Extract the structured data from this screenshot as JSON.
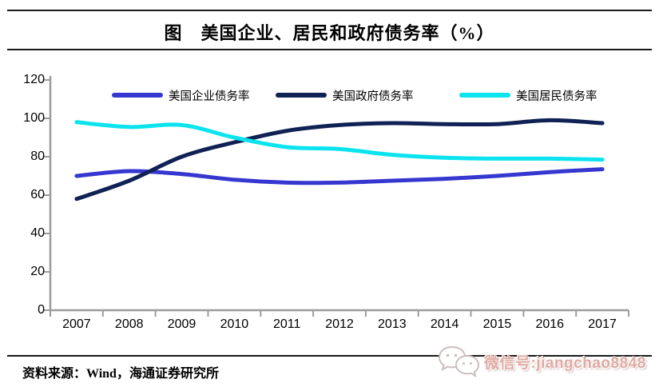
{
  "page": {
    "title": "图　美国企业、居民和政府债务率（%）",
    "source_label": "资料来源：Wind，海通证券研究所",
    "watermark_text": "微信号:jiangchao8848",
    "watermark_icon": "wechat-bubbles-icon"
  },
  "colors": {
    "corporate": "#3537cf",
    "government": "#0f2155",
    "household": "#0be4ef",
    "axis": "#9c9c9c",
    "rule": "#1a1a1a",
    "watermark": "#dfaaa2"
  },
  "chart_data": {
    "type": "line",
    "title": "图　美国企业、居民和政府债务率（%）",
    "x": [
      "2007",
      "2008",
      "2009",
      "2010",
      "2011",
      "2012",
      "2013",
      "2014",
      "2015",
      "2016",
      "2017"
    ],
    "series": [
      {
        "name": "美国企业债务率",
        "color_key": "corporate",
        "values": [
          70,
          72.5,
          71,
          68,
          66.5,
          66.5,
          67.5,
          68.5,
          70,
          72,
          73.5
        ]
      },
      {
        "name": "美国政府债务率",
        "color_key": "government",
        "values": [
          58,
          67.5,
          80,
          87.5,
          93.5,
          96.5,
          97.5,
          97,
          97,
          99,
          97.5
        ]
      },
      {
        "name": "美国居民债务率",
        "color_key": "household",
        "values": [
          98,
          95.5,
          96.5,
          90,
          85,
          84,
          81,
          79.5,
          79,
          79,
          78.5
        ]
      }
    ],
    "ylim": [
      0,
      120
    ],
    "yticks": [
      0,
      20,
      40,
      60,
      80,
      100,
      120
    ],
    "ylabel": "",
    "xlabel": "",
    "grid": false,
    "legend_position": "top"
  }
}
